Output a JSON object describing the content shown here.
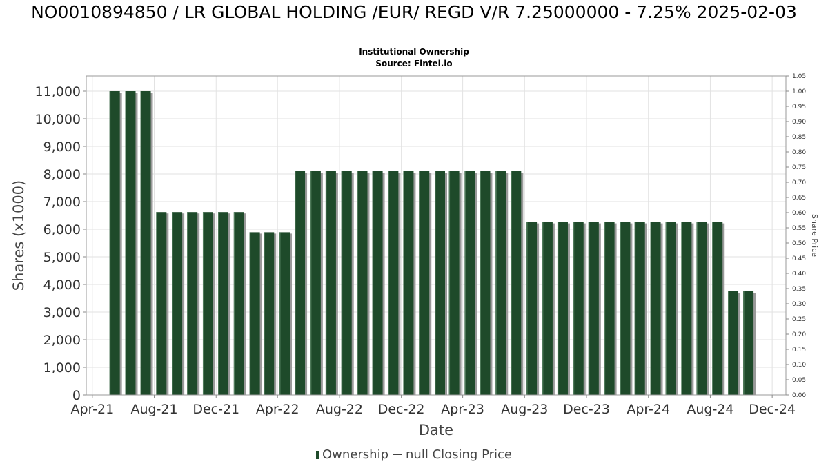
{
  "chart_data": {
    "type": "bar",
    "title": "NO0010894850 / LR GLOBAL HOLDING /EUR/ REGD V/R 7.25000000 - 7.25% 2025-02-03",
    "subtitle_lines": [
      "Institutional Ownership",
      "Source: Fintel.io"
    ],
    "xlabel": "Date",
    "ylabel": "Shares (x1000)",
    "y2label": "Share Price",
    "ylim": [
      0,
      11000
    ],
    "y2lim": [
      0,
      1.05
    ],
    "grid": true,
    "legend_placement": "bottom",
    "x_tick_labels": [
      "Apr-21",
      "Aug-21",
      "Dec-21",
      "Apr-22",
      "Aug-22",
      "Dec-22",
      "Apr-23",
      "Aug-23",
      "Dec-23",
      "Apr-24",
      "Aug-24",
      "Dec-24"
    ],
    "y_tick_labels": [
      "0",
      "1,000",
      "2,000",
      "3,000",
      "4,000",
      "5,000",
      "6,000",
      "7,000",
      "8,000",
      "9,000",
      "10,000",
      "11,000"
    ],
    "y2_tick_labels": [
      "0.00",
      "0.05",
      "0.10",
      "0.15",
      "0.20",
      "0.25",
      "0.30",
      "0.35",
      "0.40",
      "0.45",
      "0.50",
      "0.55",
      "0.60",
      "0.65",
      "0.70",
      "0.75",
      "0.80",
      "0.85",
      "0.90",
      "0.95",
      "1.00",
      "1.05"
    ],
    "series": [
      {
        "name": "Ownership",
        "color": "#1e4a2a",
        "points": [
          {
            "date": "2021-05-15",
            "value": 11000
          },
          {
            "date": "2021-06-15",
            "value": 11000
          },
          {
            "date": "2021-07-15",
            "value": 11000
          },
          {
            "date": "2021-08-15",
            "value": 6620
          },
          {
            "date": "2021-09-15",
            "value": 6620
          },
          {
            "date": "2021-10-15",
            "value": 6620
          },
          {
            "date": "2021-11-15",
            "value": 6620
          },
          {
            "date": "2021-12-15",
            "value": 6620
          },
          {
            "date": "2022-01-15",
            "value": 6620
          },
          {
            "date": "2022-02-15",
            "value": 5890
          },
          {
            "date": "2022-03-15",
            "value": 5890
          },
          {
            "date": "2022-04-15",
            "value": 5890
          },
          {
            "date": "2022-05-15",
            "value": 8100
          },
          {
            "date": "2022-06-15",
            "value": 8100
          },
          {
            "date": "2022-07-15",
            "value": 8100
          },
          {
            "date": "2022-08-15",
            "value": 8100
          },
          {
            "date": "2022-09-15",
            "value": 8100
          },
          {
            "date": "2022-10-15",
            "value": 8100
          },
          {
            "date": "2022-11-15",
            "value": 8100
          },
          {
            "date": "2022-12-15",
            "value": 8100
          },
          {
            "date": "2023-01-15",
            "value": 8100
          },
          {
            "date": "2023-02-15",
            "value": 8100
          },
          {
            "date": "2023-03-15",
            "value": 8100
          },
          {
            "date": "2023-04-15",
            "value": 8100
          },
          {
            "date": "2023-05-15",
            "value": 8100
          },
          {
            "date": "2023-06-15",
            "value": 8100
          },
          {
            "date": "2023-07-15",
            "value": 8100
          },
          {
            "date": "2023-08-15",
            "value": 6260
          },
          {
            "date": "2023-09-15",
            "value": 6260
          },
          {
            "date": "2023-10-15",
            "value": 6260
          },
          {
            "date": "2023-11-15",
            "value": 6260
          },
          {
            "date": "2023-12-15",
            "value": 6260
          },
          {
            "date": "2024-01-15",
            "value": 6260
          },
          {
            "date": "2024-02-15",
            "value": 6260
          },
          {
            "date": "2024-03-15",
            "value": 6260
          },
          {
            "date": "2024-04-15",
            "value": 6260
          },
          {
            "date": "2024-05-15",
            "value": 6260
          },
          {
            "date": "2024-06-15",
            "value": 6260
          },
          {
            "date": "2024-07-15",
            "value": 6260
          },
          {
            "date": "2024-08-15",
            "value": 6260
          },
          {
            "date": "2024-09-15",
            "value": 3750
          },
          {
            "date": "2024-10-15",
            "value": 3750
          }
        ]
      },
      {
        "name": "null Closing Price",
        "color": "#444444",
        "points": []
      }
    ]
  }
}
